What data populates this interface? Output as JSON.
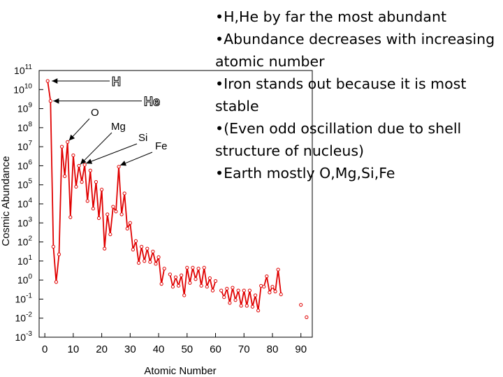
{
  "bullets": [
    "•H,He by far the most abundant",
    "•Abundance decreases with increasing atomic number",
    "•Iron stands out because it is most stable",
    "•(Even odd oscillation due to shell structure of nucleus)",
    "•Earth mostly O,Mg,Si,Fe"
  ],
  "chart_data": {
    "type": "line",
    "xlabel": "Atomic Number",
    "ylabel": "Cosmic Abundance",
    "log_y": true,
    "xlim": [
      -2,
      94
    ],
    "ylim_exponent": [
      -3,
      11
    ],
    "x_ticks": [
      0,
      10,
      20,
      30,
      40,
      50,
      60,
      70,
      80,
      90
    ],
    "y_tick_exponents": [
      11,
      10,
      9,
      8,
      7,
      6,
      5,
      4,
      3,
      2,
      1,
      0,
      -1,
      -2,
      -3
    ],
    "line_color": "#e00000",
    "series": [
      {
        "values_log10": [
          [
            1,
            10.45
          ],
          [
            2,
            9.4
          ],
          [
            3,
            1.75
          ],
          [
            4,
            -0.1
          ],
          [
            5,
            1.35
          ],
          [
            6,
            7.0
          ],
          [
            7,
            5.45
          ],
          [
            8,
            7.25
          ],
          [
            9,
            3.3
          ],
          [
            10,
            6.55
          ],
          [
            11,
            4.9
          ],
          [
            12,
            6.0
          ],
          [
            13,
            5.15
          ],
          [
            14,
            6.05
          ],
          [
            15,
            4.15
          ],
          [
            16,
            5.75
          ],
          [
            17,
            3.75
          ],
          [
            18,
            5.15
          ],
          [
            19,
            3.25
          ],
          [
            20,
            4.75
          ],
          [
            21,
            1.65
          ],
          [
            22,
            3.45
          ],
          [
            23,
            2.4
          ],
          [
            24,
            3.85
          ],
          [
            25,
            3.6
          ],
          [
            26,
            5.95
          ],
          [
            27,
            3.45
          ],
          [
            28,
            4.55
          ],
          [
            29,
            2.7
          ],
          [
            30,
            3.0
          ],
          [
            31,
            1.6
          ],
          [
            32,
            2.05
          ],
          [
            33,
            0.9
          ],
          [
            34,
            1.75
          ],
          [
            35,
            1.0
          ],
          [
            36,
            1.65
          ],
          [
            37,
            0.95
          ],
          [
            38,
            1.5
          ],
          [
            39,
            0.85
          ],
          [
            40,
            1.2
          ],
          [
            41,
            -0.2
          ],
          [
            42,
            0.6
          ],
          [
            43,
            null
          ],
          [
            44,
            0.3
          ],
          [
            45,
            -0.35
          ],
          [
            46,
            0.15
          ],
          [
            47,
            -0.3
          ],
          [
            48,
            0.25
          ],
          [
            49,
            -0.8
          ],
          [
            50,
            0.65
          ],
          [
            51,
            -0.15
          ],
          [
            52,
            0.65
          ],
          [
            53,
            0.05
          ],
          [
            54,
            0.6
          ],
          [
            55,
            -0.3
          ],
          [
            56,
            0.65
          ],
          [
            57,
            -0.35
          ],
          [
            58,
            0.1
          ],
          [
            59,
            -0.55
          ],
          [
            60,
            -0.05
          ],
          [
            61,
            null
          ],
          [
            62,
            -0.55
          ],
          [
            63,
            -0.9
          ],
          [
            64,
            -0.45
          ],
          [
            65,
            -1.2
          ],
          [
            66,
            -0.4
          ],
          [
            67,
            -1.05
          ],
          [
            68,
            -0.55
          ],
          [
            69,
            -1.35
          ],
          [
            70,
            -0.55
          ],
          [
            71,
            -1.35
          ],
          [
            72,
            -0.55
          ],
          [
            73,
            -1.4
          ],
          [
            74,
            -0.8
          ],
          [
            75,
            -1.6
          ],
          [
            76,
            -0.3
          ],
          [
            77,
            -0.35
          ],
          [
            78,
            0.2
          ],
          [
            79,
            -0.65
          ],
          [
            80,
            -0.35
          ],
          [
            81,
            -0.6
          ],
          [
            82,
            0.55
          ],
          [
            83,
            -0.75
          ],
          [
            90,
            -1.3
          ],
          [
            92,
            -1.95
          ]
        ]
      }
    ],
    "annotations": [
      {
        "label": "H",
        "x": 1,
        "y_log10": 10.45,
        "style": "outline"
      },
      {
        "label": "He",
        "x": 2,
        "y_log10": 9.4,
        "style": "outline"
      },
      {
        "label": "O",
        "x": 8,
        "y_log10": 7.25,
        "style": "plain"
      },
      {
        "label": "Mg",
        "x": 12,
        "y_log10": 6.0,
        "style": "plain"
      },
      {
        "label": "Si",
        "x": 14,
        "y_log10": 6.05,
        "style": "plain"
      },
      {
        "label": "Fe",
        "x": 26,
        "y_log10": 5.95,
        "style": "plain"
      }
    ]
  }
}
